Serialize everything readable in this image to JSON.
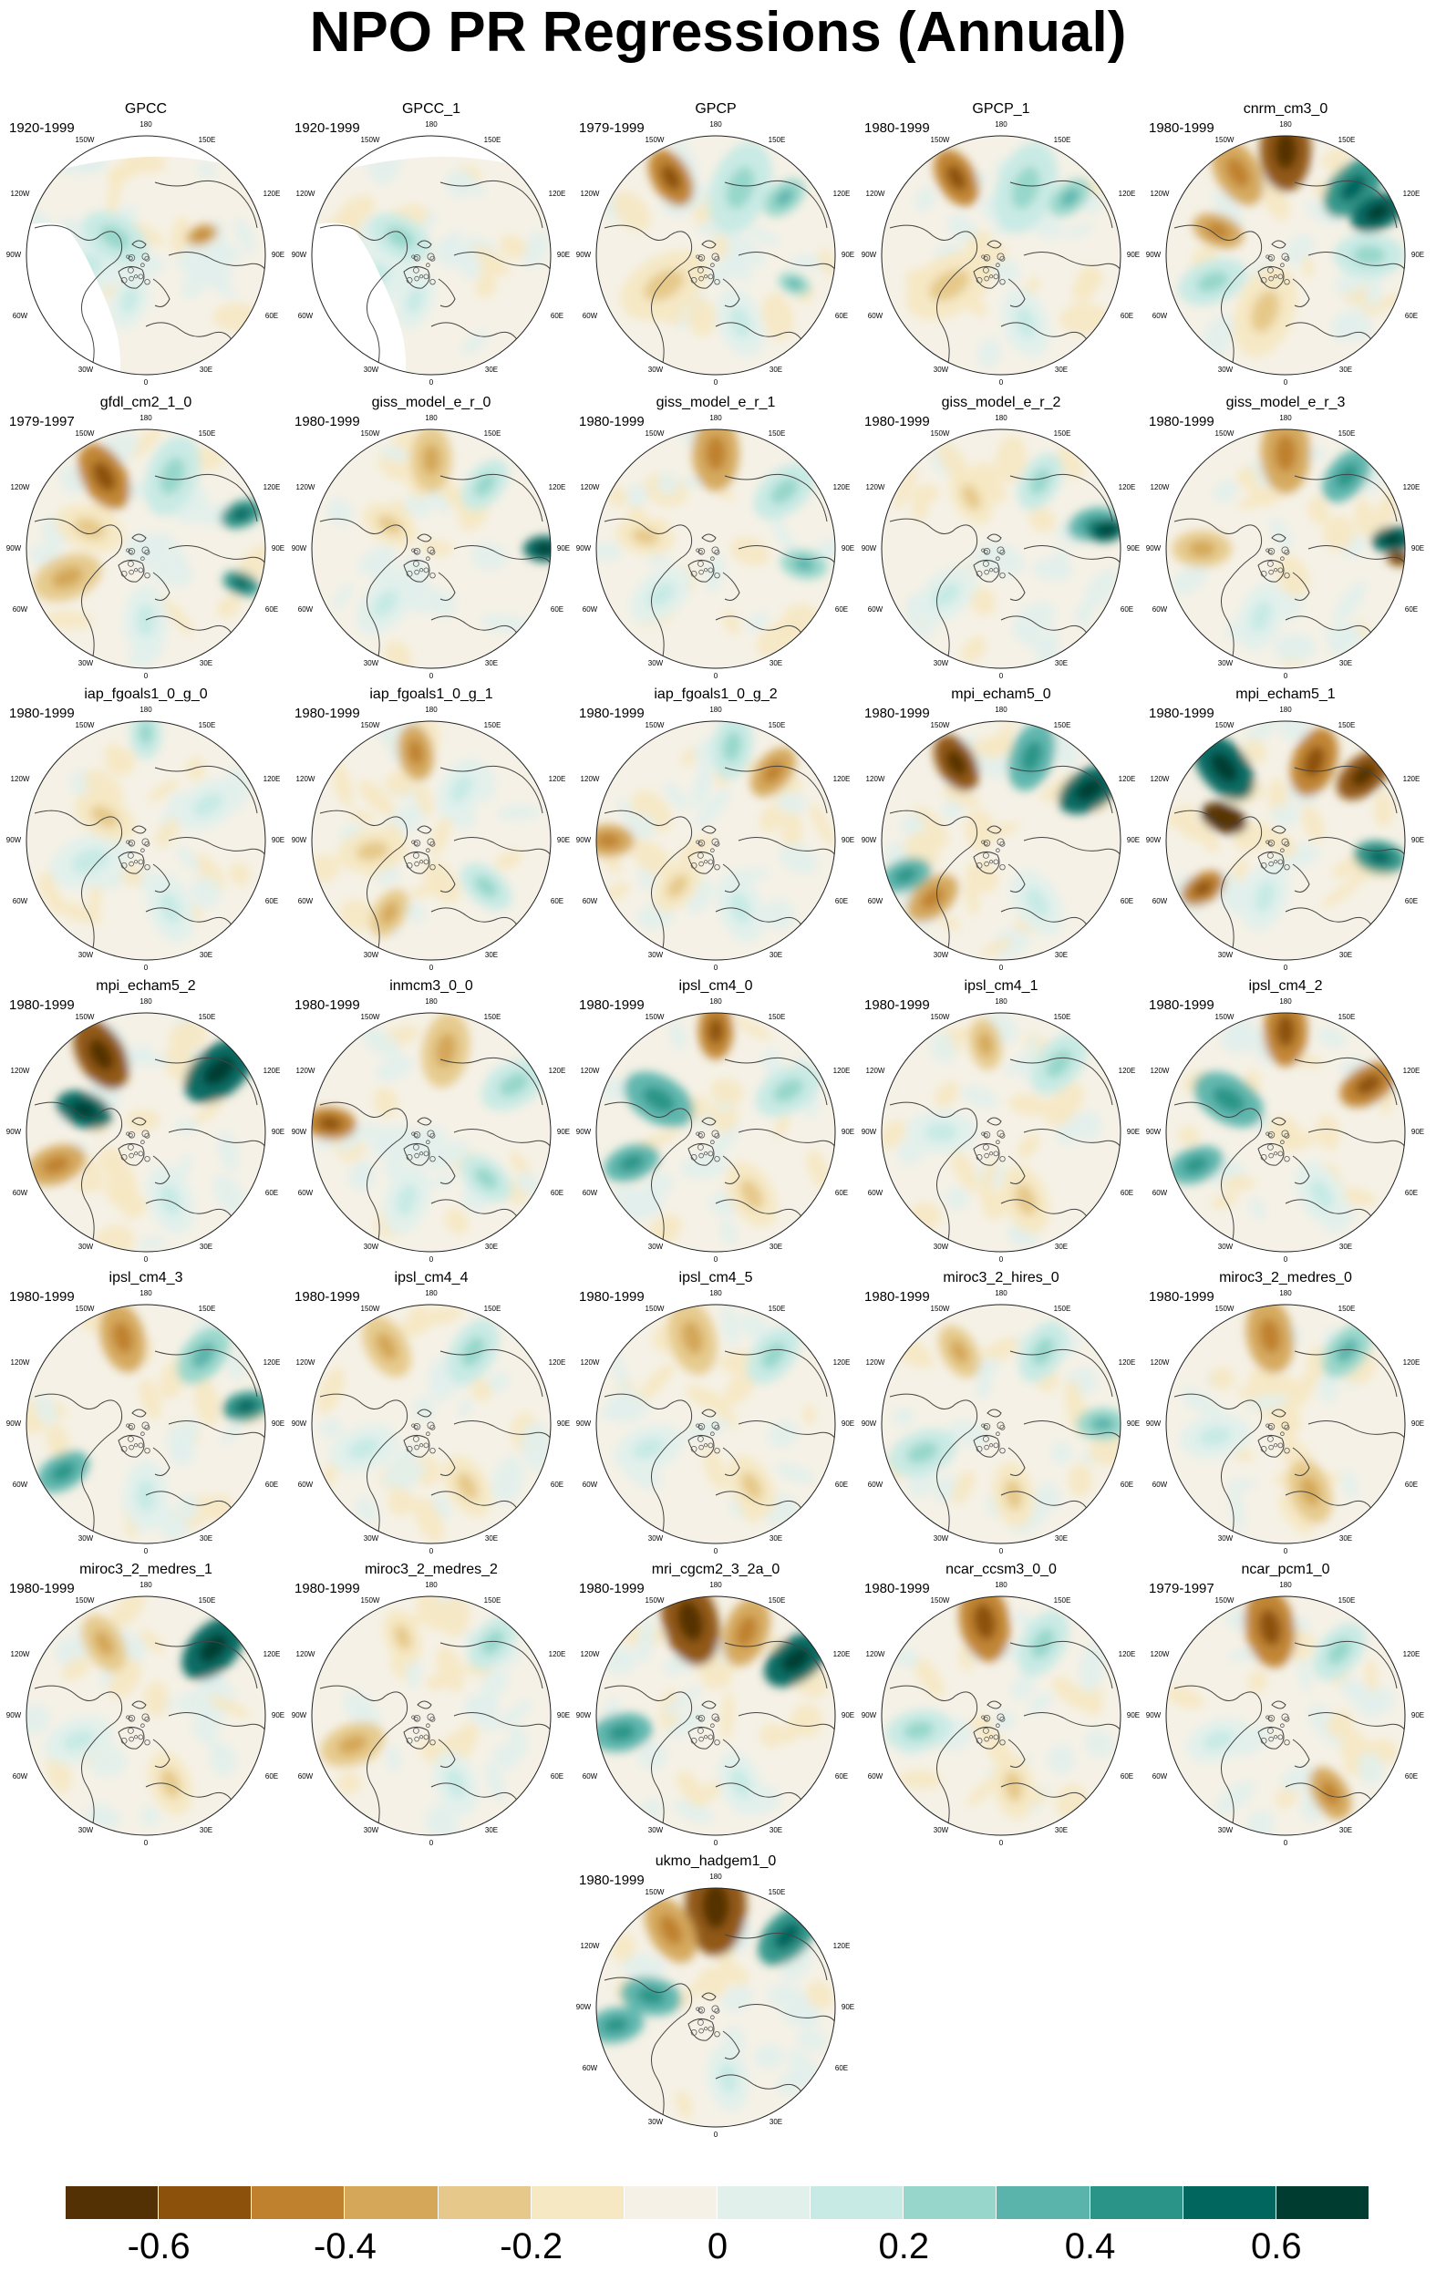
{
  "title": "NPO PR Regressions (Annual)",
  "map_labels": {
    "n": "180",
    "nnw": "150W",
    "nne": "150E",
    "wnw": "120W",
    "ene": "120E",
    "w": "90W",
    "e": "90E",
    "wsw": "60W",
    "ese": "60E",
    "ssw": "30W",
    "sse": "30E",
    "s": "0"
  },
  "panels": [
    {
      "title": "GPCC",
      "period": "1920-1999"
    },
    {
      "title": "GPCC_1",
      "period": "1920-1999"
    },
    {
      "title": "GPCP",
      "period": "1979-1999"
    },
    {
      "title": "GPCP_1",
      "period": "1980-1999"
    },
    {
      "title": "cnrm_cm3_0",
      "period": "1980-1999"
    },
    {
      "title": "gfdl_cm2_1_0",
      "period": "1979-1997"
    },
    {
      "title": "giss_model_e_r_0",
      "period": "1980-1999"
    },
    {
      "title": "giss_model_e_r_1",
      "period": "1980-1999"
    },
    {
      "title": "giss_model_e_r_2",
      "period": "1980-1999"
    },
    {
      "title": "giss_model_e_r_3",
      "period": "1980-1999"
    },
    {
      "title": "iap_fgoals1_0_g_0",
      "period": "1980-1999"
    },
    {
      "title": "iap_fgoals1_0_g_1",
      "period": "1980-1999"
    },
    {
      "title": "iap_fgoals1_0_g_2",
      "period": "1980-1999"
    },
    {
      "title": "mpi_echam5_0",
      "period": "1980-1999"
    },
    {
      "title": "mpi_echam5_1",
      "period": "1980-1999"
    },
    {
      "title": "mpi_echam5_2",
      "period": "1980-1999"
    },
    {
      "title": "inmcm3_0_0",
      "period": "1980-1999"
    },
    {
      "title": "ipsl_cm4_0",
      "period": "1980-1999"
    },
    {
      "title": "ipsl_cm4_1",
      "period": "1980-1999"
    },
    {
      "title": "ipsl_cm4_2",
      "period": "1980-1999"
    },
    {
      "title": "ipsl_cm4_3",
      "period": "1980-1999"
    },
    {
      "title": "ipsl_cm4_4",
      "period": "1980-1999"
    },
    {
      "title": "ipsl_cm4_5",
      "period": "1980-1999"
    },
    {
      "title": "miroc3_2_hires_0",
      "period": "1980-1999"
    },
    {
      "title": "miroc3_2_medres_0",
      "period": "1980-1999"
    },
    {
      "title": "miroc3_2_medres_1",
      "period": "1980-1999"
    },
    {
      "title": "miroc3_2_medres_2",
      "period": "1980-1999"
    },
    {
      "title": "mri_cgcm2_3_2a_0",
      "period": "1980-1999"
    },
    {
      "title": "ncar_ccsm3_0_0",
      "period": "1980-1999"
    },
    {
      "title": "ncar_pcm1_0",
      "period": "1979-1997"
    },
    {
      "title": "ukmo_hadgem1_0",
      "period": "1980-1999"
    }
  ],
  "colorbar": {
    "colors": [
      "#543005",
      "#8c510a",
      "#bf812d",
      "#d4a759",
      "#e6c98a",
      "#f6e8c3",
      "#f5f1e6",
      "#e2f0ec",
      "#c7eae5",
      "#97d7cb",
      "#5ab4ac",
      "#2a9488",
      "#01665e",
      "#003c30"
    ],
    "tick_labels": [
      "-0.6",
      "-0.4",
      "-0.2",
      "0",
      "0.2",
      "0.4",
      "0.6"
    ],
    "tick_values": [
      -0.6,
      -0.4,
      -0.2,
      0,
      0.2,
      0.4,
      0.6
    ],
    "min": -0.7,
    "max": 0.7
  }
}
